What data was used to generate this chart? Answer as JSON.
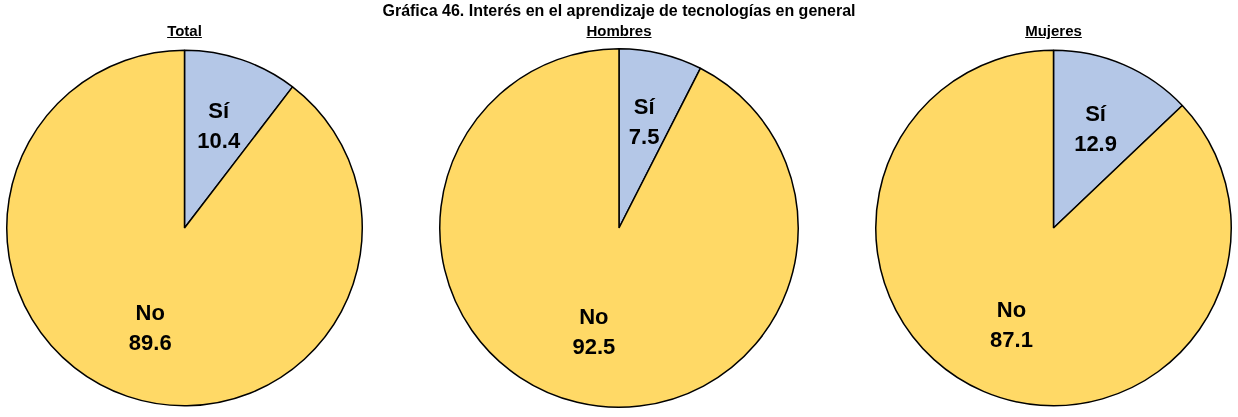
{
  "chart_data": [
    {
      "type": "pie",
      "subtitle": "Total",
      "categories": [
        "Sí",
        "No"
      ],
      "values": [
        10.4,
        89.6
      ],
      "colors": [
        "#b4c7e7",
        "#ffd966"
      ],
      "data_labels": true,
      "legend": false
    },
    {
      "type": "pie",
      "title": "Gráfica 46. Interés en el aprendizaje de tecnologías en general",
      "subtitle": "Hombres",
      "categories": [
        "Sí",
        "No"
      ],
      "values": [
        7.5,
        92.5
      ],
      "colors": [
        "#b4c7e7",
        "#ffd966"
      ],
      "data_labels": true,
      "legend": false
    },
    {
      "type": "pie",
      "subtitle": "Mujeres",
      "categories": [
        "Sí",
        "No"
      ],
      "values": [
        12.9,
        87.1
      ],
      "colors": [
        "#b4c7e7",
        "#ffd966"
      ],
      "data_labels": true,
      "legend": false
    }
  ]
}
